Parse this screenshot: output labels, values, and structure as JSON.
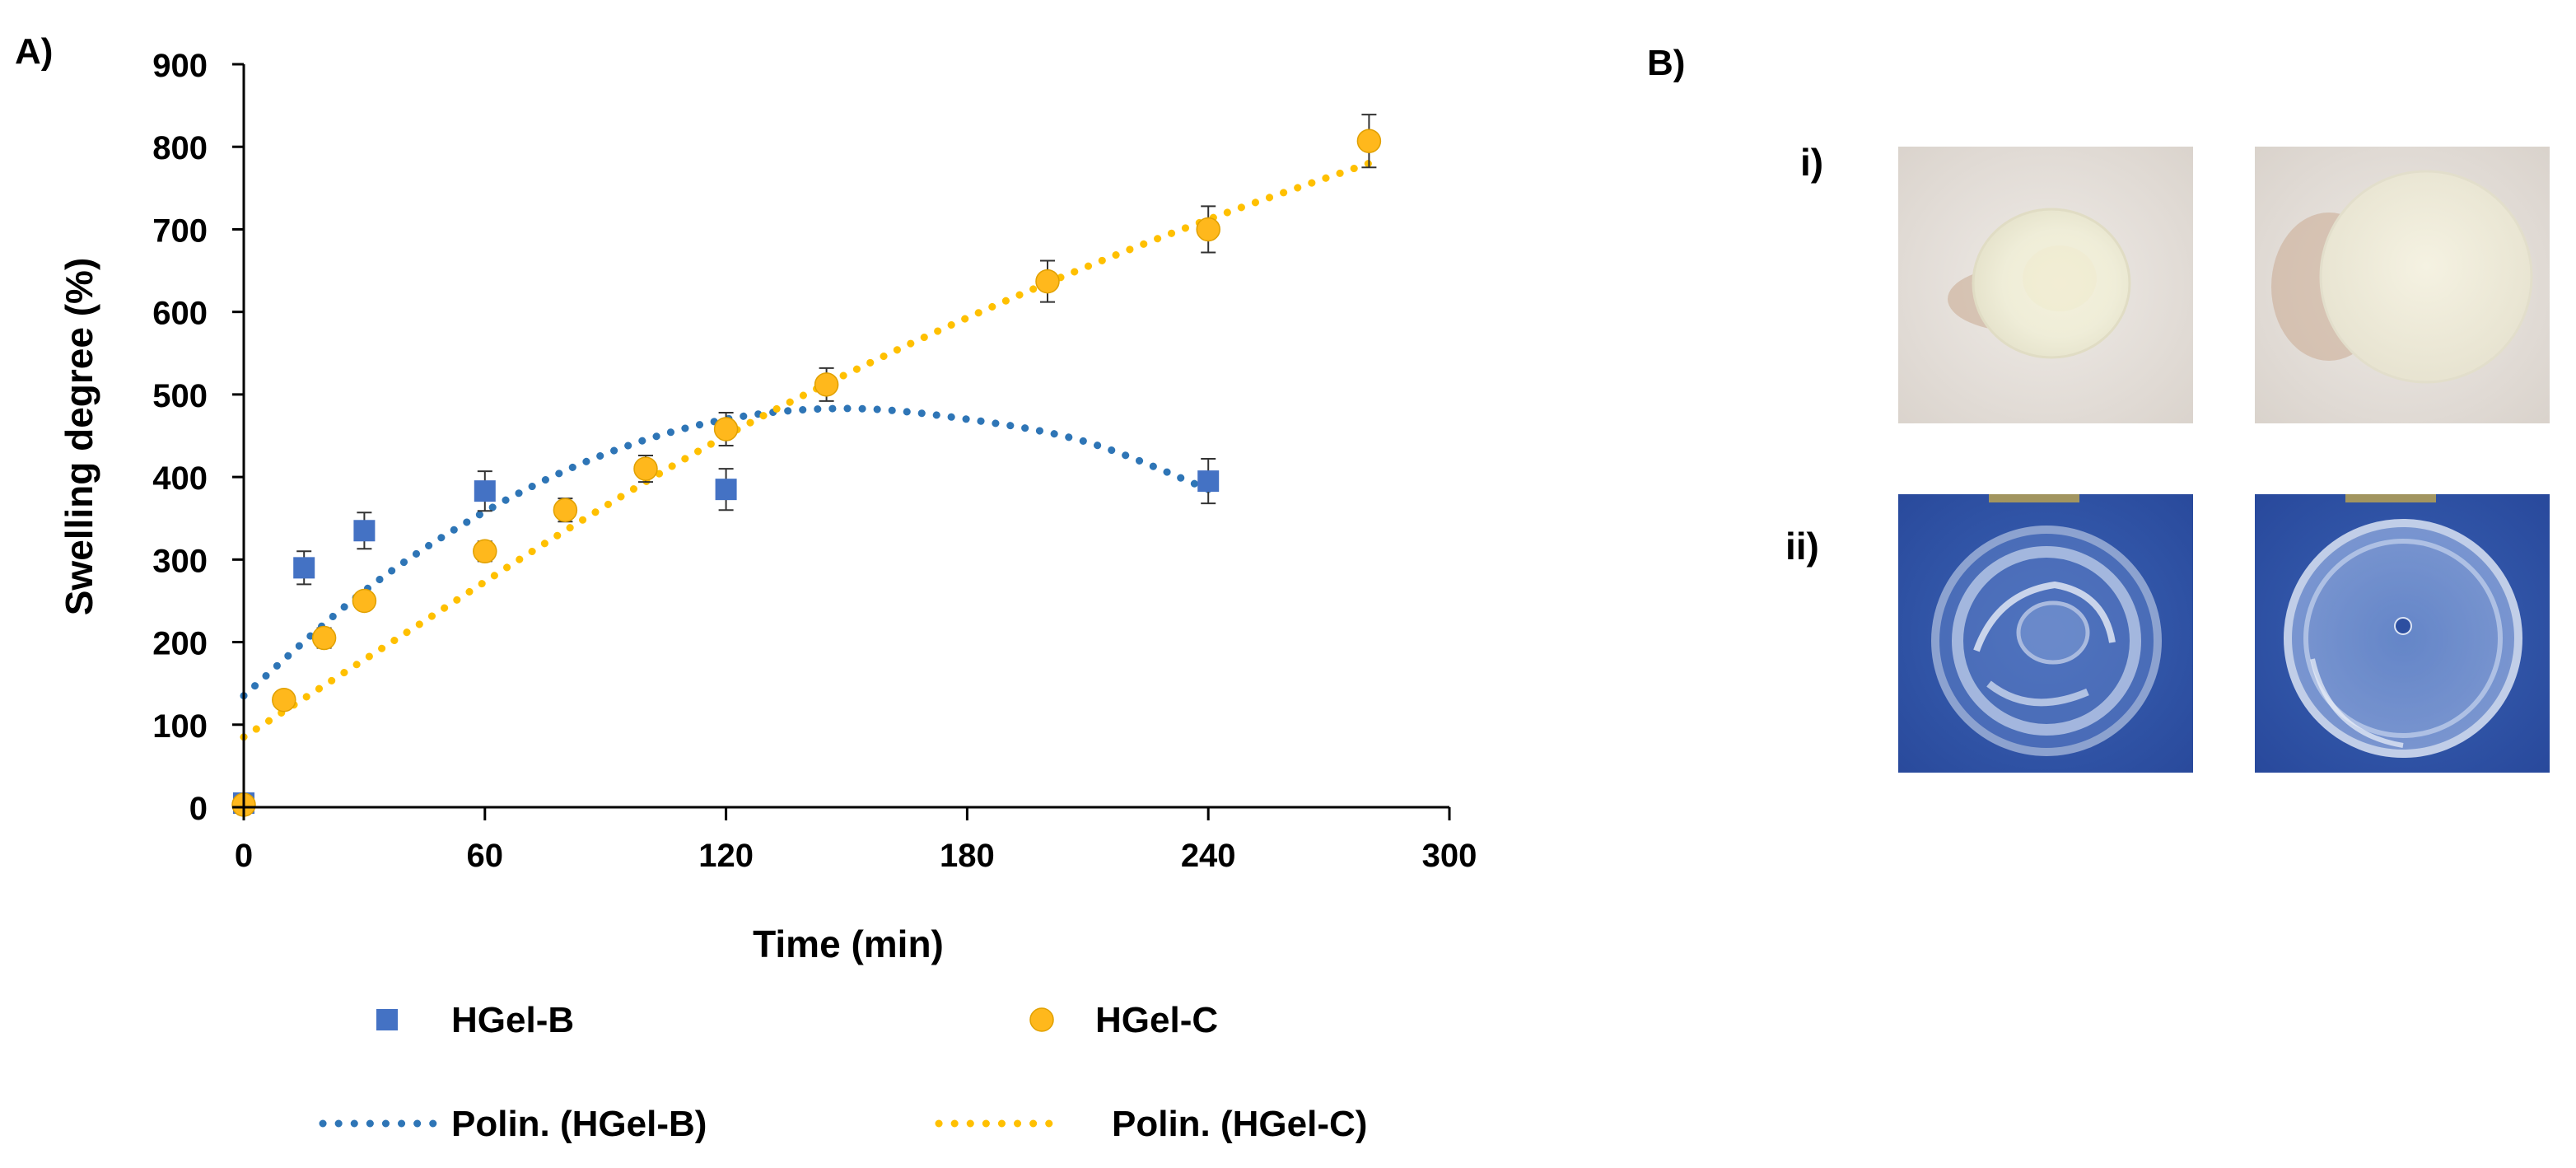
{
  "panel_a_label": "A)",
  "panel_b_label": "B)",
  "panel_b": {
    "row_labels": [
      "i)",
      "ii)"
    ]
  },
  "colors": {
    "hgel_b": "#4472C4",
    "hgel_c": "#FFB81C",
    "hgel_c_trend": "#FFC000",
    "hgel_b_trend": "#2E75B6",
    "axis": "#000000",
    "photo_white_bg": "#e9e4df",
    "photo_blue_bg": "#2f56a8"
  },
  "chart_data": {
    "type": "scatter",
    "xlabel": "Time (min)",
    "ylabel": "Swelling degree (%)",
    "xlim": [
      0,
      300
    ],
    "ylim": [
      0,
      900
    ],
    "xticks": [
      0,
      60,
      120,
      180,
      240,
      300
    ],
    "yticks": [
      0,
      100,
      200,
      300,
      400,
      500,
      600,
      700,
      800,
      900
    ],
    "grid": false,
    "legend_position": "bottom",
    "series": [
      {
        "name": "HGel-B",
        "marker": "square",
        "x": [
          0,
          15,
          30,
          60,
          120,
          240
        ],
        "y": [
          5,
          290,
          335,
          383,
          385,
          395
        ],
        "err": [
          0,
          20,
          22,
          24,
          25,
          27
        ]
      },
      {
        "name": "HGel-C",
        "marker": "circle",
        "x": [
          0,
          10,
          20,
          30,
          60,
          80,
          100,
          120,
          145,
          200,
          240,
          280
        ],
        "y": [
          3,
          130,
          205,
          250,
          310,
          360,
          410,
          458,
          512,
          637,
          700,
          807
        ],
        "err": [
          0,
          8,
          12,
          10,
          12,
          14,
          16,
          20,
          20,
          25,
          28,
          32
        ]
      }
    ],
    "trendlines": [
      {
        "name": "Polin. (HGel-B)",
        "type": "polynomial",
        "x": [
          0,
          30,
          60,
          90,
          120,
          150,
          180,
          210,
          240
        ],
        "y": [
          135,
          262,
          358,
          428,
          470,
          483,
          470,
          442,
          385
        ]
      },
      {
        "name": "Polin. (HGel-C)",
        "type": "polynomial",
        "x": [
          0,
          40,
          80,
          120,
          160,
          200,
          240,
          280
        ],
        "y": [
          85,
          210,
          335,
          450,
          548,
          635,
          712,
          780
        ]
      }
    ],
    "legend": [
      "HGel-B",
      "HGel-C",
      "Polin. (HGel-B)",
      "Polin. (HGel-C)"
    ]
  }
}
